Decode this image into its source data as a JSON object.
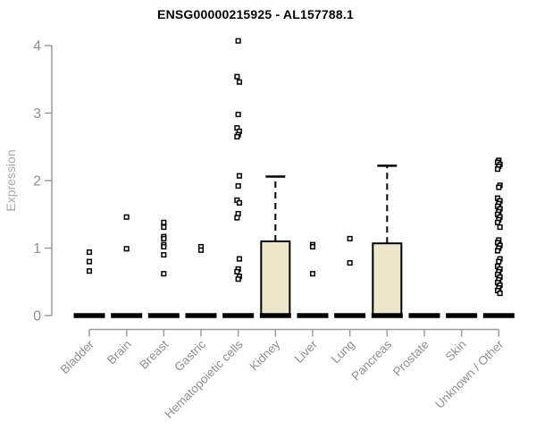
{
  "page": {
    "background": "#ffffff"
  },
  "chart_data": {
    "type": "boxplot",
    "title": "ENSG00000215925 - AL157788.1",
    "ylabel": "Expression",
    "xlabel": "",
    "ylim": [
      0,
      4.15
    ],
    "yticks": [
      0,
      1,
      2,
      3,
      4
    ],
    "grid": false,
    "legend": false,
    "axis_color": "#9c9c9c",
    "tick_label_color": "#8f8f8f",
    "category_label_color": "#8f8f8f",
    "title_color": "#000000",
    "box_fill": "#ece7cd",
    "box_border": "#000000",
    "median_color": "#000000",
    "marker": "open-square",
    "marker_color": "#000000",
    "categories": [
      "Bladder",
      "Brain",
      "Breast",
      "Gastric",
      "Hematopoietic cells",
      "Kidney",
      "Liver",
      "Lung",
      "Pancreas",
      "Prostate",
      "Skin",
      "Unknown / Other"
    ],
    "boxes": [
      {
        "category": "Bladder",
        "median": 0,
        "q1": 0,
        "q3": 0,
        "whisker_low": 0,
        "whisker_high": 0,
        "outliers": [
          0.94,
          0.8,
          0.66
        ]
      },
      {
        "category": "Brain",
        "median": 0,
        "q1": 0,
        "q3": 0,
        "whisker_low": 0,
        "whisker_high": 0,
        "outliers": [
          1.46,
          0.99
        ]
      },
      {
        "category": "Breast",
        "median": 0,
        "q1": 0,
        "q3": 0,
        "whisker_low": 0,
        "whisker_high": 0,
        "outliers": [
          1.38,
          1.31,
          1.17,
          1.14,
          1.05,
          1.02,
          0.9,
          0.62
        ]
      },
      {
        "category": "Gastric",
        "median": 0,
        "q1": 0,
        "q3": 0,
        "whisker_low": 0,
        "whisker_high": 0,
        "outliers": [
          1.02,
          0.97
        ]
      },
      {
        "category": "Hematopoietic cells",
        "median": 0,
        "q1": 0,
        "q3": 0,
        "whisker_low": 0,
        "whisker_high": 0,
        "outliers": [
          4.07,
          3.54,
          3.46,
          2.98,
          2.78,
          2.73,
          2.68,
          2.65,
          2.07,
          1.92,
          1.71,
          1.67,
          1.51,
          1.45,
          0.84,
          0.69,
          0.65,
          0.58,
          0.54
        ]
      },
      {
        "category": "Kidney",
        "median": 0,
        "q1": 0,
        "q3": 1.1,
        "whisker_low": 0,
        "whisker_high": 2.06,
        "outliers": []
      },
      {
        "category": "Liver",
        "median": 0,
        "q1": 0,
        "q3": 0,
        "whisker_low": 0,
        "whisker_high": 0,
        "outliers": [
          1.05,
          1.02,
          0.62
        ]
      },
      {
        "category": "Lung",
        "median": 0,
        "q1": 0,
        "q3": 0,
        "whisker_low": 0,
        "whisker_high": 0,
        "outliers": [
          1.14,
          0.78
        ]
      },
      {
        "category": "Pancreas",
        "median": 0,
        "q1": 0,
        "q3": 1.07,
        "whisker_low": 0,
        "whisker_high": 2.22,
        "outliers": []
      },
      {
        "category": "Prostate",
        "median": 0,
        "q1": 0,
        "q3": 0,
        "whisker_low": 0,
        "whisker_high": 0,
        "outliers": []
      },
      {
        "category": "Skin",
        "median": 0,
        "q1": 0,
        "q3": 0,
        "whisker_low": 0,
        "whisker_high": 0,
        "outliers": []
      },
      {
        "category": "Unknown / Other",
        "median": 0,
        "q1": 0,
        "q3": 0,
        "whisker_low": 0,
        "whisker_high": 0,
        "outliers": [
          2.3,
          2.27,
          2.24,
          2.21,
          2.17,
          1.93,
          1.9,
          1.74,
          1.7,
          1.66,
          1.62,
          1.58,
          1.54,
          1.5,
          1.46,
          1.42,
          1.38,
          1.31,
          1.12,
          1.08,
          1.04,
          1.0,
          0.96,
          0.84,
          0.8,
          0.73,
          0.69,
          0.65,
          0.61,
          0.57,
          0.53,
          0.49,
          0.45,
          0.41,
          0.37,
          0.33
        ]
      }
    ]
  }
}
